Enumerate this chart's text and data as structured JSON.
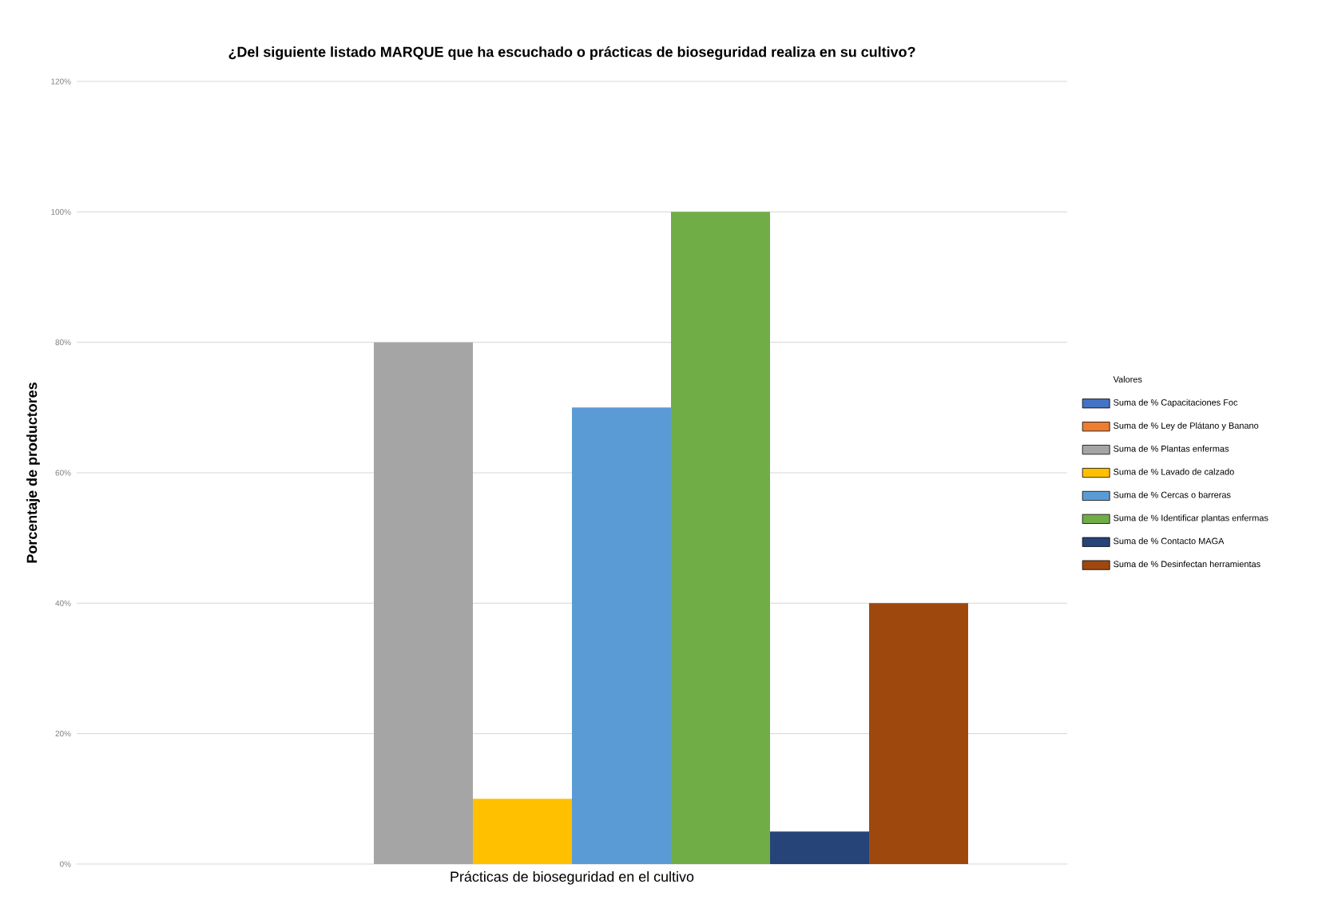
{
  "chart_data": {
    "type": "bar",
    "title": "¿Del siguiente listado MARQUE que ha escuchado o prácticas de bioseguridad realiza en su cultivo?",
    "xlabel": "Prácticas de bioseguridad en el cultivo",
    "ylabel": "Porcentaje de productores",
    "legend_title": "Valores",
    "categories": [
      null
    ],
    "series": [
      {
        "name": "Suma de % Capacitaciones Foc",
        "color": "#4472c4",
        "values": [
          0
        ]
      },
      {
        "name": "Suma de % Ley de Plátano y Banano",
        "color": "#ed7d31",
        "values": [
          0
        ]
      },
      {
        "name": "Suma de % Plantas enfermas",
        "color": "#a5a5a5",
        "values": [
          80
        ]
      },
      {
        "name": "Suma de % Lavado de calzado",
        "color": "#ffc000",
        "values": [
          10
        ]
      },
      {
        "name": "Suma de % Cercas o barreras",
        "color": "#5b9bd5",
        "values": [
          70
        ]
      },
      {
        "name": "Suma de % Identificar plantas enfermas",
        "color": "#70ad47",
        "values": [
          100
        ]
      },
      {
        "name": "Suma de % Contacto MAGA",
        "color": "#264478",
        "values": [
          5
        ]
      },
      {
        "name": "Suma de % Desinfectan herramientas",
        "color": "#9e480e",
        "values": [
          40
        ]
      }
    ],
    "ylim": [
      0,
      120
    ],
    "yticks": [
      {
        "value": 0,
        "label": "0%"
      },
      {
        "value": 20,
        "label": "20%"
      },
      {
        "value": 40,
        "label": "40%"
      },
      {
        "value": 60,
        "label": "60%"
      },
      {
        "value": 80,
        "label": "80%"
      },
      {
        "value": 100,
        "label": "100%"
      },
      {
        "value": 120,
        "label": "120%"
      }
    ],
    "grid": "y",
    "legend": "right"
  }
}
